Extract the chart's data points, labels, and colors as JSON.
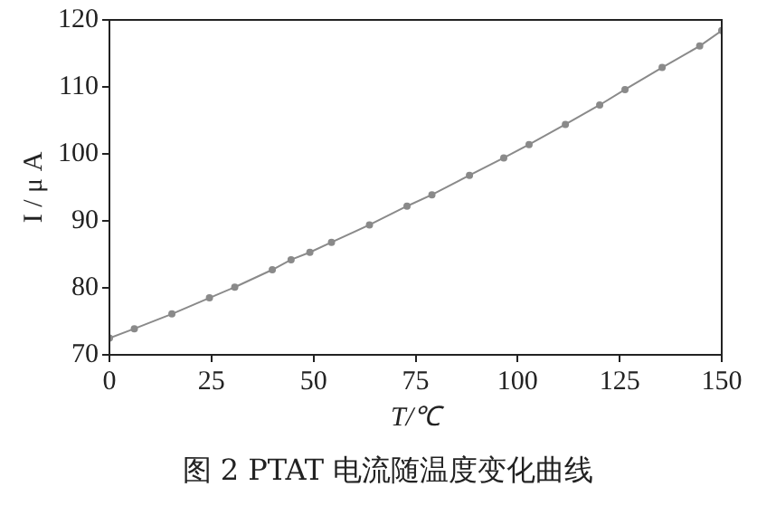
{
  "chart_data": {
    "type": "line",
    "xlabel": "T/℃",
    "ylabel": "I / μ A",
    "annotations": [
      "图 2  PTAT 电流随温度变化曲线"
    ],
    "x": [
      0,
      6.1,
      15.3,
      24.5,
      30.7,
      39.9,
      44.5,
      49.1,
      54.4,
      63.7,
      72.9,
      79,
      88.2,
      96.6,
      102.8,
      111.7,
      120.1,
      126.3,
      135.4,
      144.6,
      150
    ],
    "series": [
      {
        "color": "#8a8a8a",
        "values": [
          72.5,
          73.9,
          76.1,
          78.5,
          80.1,
          82.7,
          84.2,
          85.3,
          86.8,
          89.4,
          92.2,
          93.9,
          96.8,
          99.4,
          101.4,
          104.4,
          107.3,
          109.6,
          112.9,
          116.1,
          118.4
        ]
      }
    ],
    "xlim": [
      0,
      150
    ],
    "xticks": [
      0,
      25,
      50,
      75,
      100,
      125,
      150
    ],
    "ylim": [
      70,
      120
    ],
    "yticks": [
      70,
      80,
      90,
      100,
      110,
      120
    ],
    "grid": false,
    "legend": false,
    "marker": "circle",
    "line_style": "solid"
  }
}
